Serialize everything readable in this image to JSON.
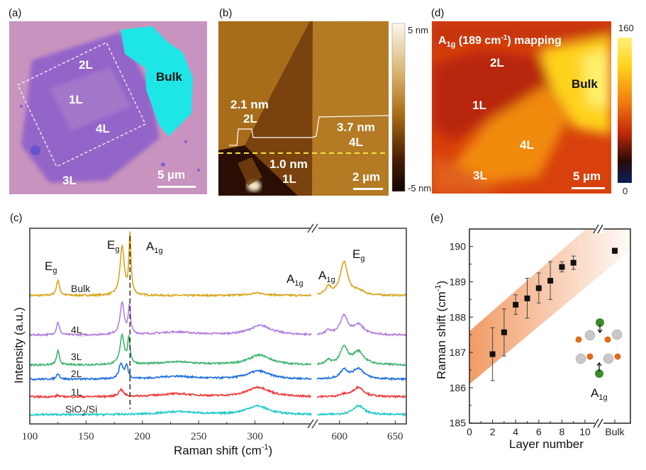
{
  "panels": {
    "a": {
      "label": "(a)",
      "regions": {
        "r2L": "2L",
        "r1L": "1L",
        "r4L": "4L",
        "r3L": "3L"
      },
      "bulk": "Bulk",
      "scale_bar": "5 µm",
      "colors": {
        "substrate": "#c792bd",
        "flake": "#8e62c6",
        "bulk": "#1fe6e6"
      }
    },
    "b": {
      "label": "(b)",
      "step_2L": "2.1 nm",
      "layer_2L": "2L",
      "step_4L": "3.7 nm",
      "layer_4L": "4L",
      "step_1L": "1.0 nm",
      "layer_1L": "1L",
      "scale_bar": "2 µm",
      "colorbar": {
        "max": "5 nm",
        "min": "-5 nm"
      }
    },
    "d": {
      "label": "(d)",
      "title": {
        "a": "A",
        "sub": "1g",
        "mid": " (189 cm",
        "sup": "-1",
        "end": ") mapping"
      },
      "regions": {
        "r2L": "2L",
        "r1L": "1L",
        "r4L": "4L",
        "r3L": "3L"
      },
      "bulk": "Bulk",
      "scale_bar": "5 µm",
      "colorbar": {
        "max": "160",
        "min": "0"
      }
    }
  },
  "chart_data": [
    {
      "panel": "(c)",
      "type": "line",
      "xlabel": {
        "main": "Raman shift (cm",
        "sup": "-1",
        "end": ")"
      },
      "ylabel": "Intensity (a.u.)",
      "x_segments": [
        [
          100,
          350
        ],
        [
          580,
          660
        ]
      ],
      "x_ticks": [
        "100",
        "150",
        "200",
        "250",
        "300",
        "600",
        "650"
      ],
      "dashed_line_x": 189,
      "series": [
        {
          "name": "Bulk",
          "color": "#d8a419",
          "baseline": 65.6,
          "peaks": [
            [
              125,
              7.8,
              1.6
            ],
            [
              182,
              25,
              2.2
            ],
            [
              189,
              30.5,
              1.1
            ],
            [
              302,
              1.2,
              10
            ],
            [
              590,
              4.3,
              3
            ],
            [
              604,
              17,
              4
            ],
            [
              617,
              2,
              6
            ]
          ]
        },
        {
          "name": "4L",
          "color": "#b27ee0",
          "baseline": 45.4,
          "peaks": [
            [
              125,
              6.6,
              1.5
            ],
            [
              182,
              16,
              2.2
            ],
            [
              188.5,
              14,
              1.2
            ],
            [
              230,
              1.5,
              20
            ],
            [
              305,
              4.8,
              12
            ],
            [
              590,
              2,
              3
            ],
            [
              604,
              9.4,
              4
            ],
            [
              617,
              5,
              6
            ]
          ]
        },
        {
          "name": "3L",
          "color": "#3db36e",
          "baseline": 30.1,
          "peaks": [
            [
              125,
              7,
              1.5
            ],
            [
              182,
              15,
              2.2
            ],
            [
              188,
              12.7,
              1.3
            ],
            [
              230,
              1.5,
              20
            ],
            [
              304,
              5,
              12
            ],
            [
              590,
              2,
              3
            ],
            [
              604,
              8.7,
              4
            ],
            [
              617,
              6.6,
              6
            ]
          ]
        },
        {
          "name": "2L",
          "color": "#1f6fe2",
          "baseline": 22.8,
          "peaks": [
            [
              125,
              3,
              1.5
            ],
            [
              181,
              7.5,
              2.2
            ],
            [
              186,
              6.3,
              1.6
            ],
            [
              230,
              1.5,
              20
            ],
            [
              303,
              4.2,
              12
            ],
            [
              604,
              4.7,
              4
            ],
            [
              617,
              5.4,
              6
            ]
          ]
        },
        {
          "name": "1L",
          "color": "#ee3c3c",
          "baseline": 13.8,
          "peaks": [
            [
              125,
              0.8,
              1.5
            ],
            [
              181,
              3.6,
              2.5
            ],
            [
              230,
              1.5,
              20
            ],
            [
              303,
              4.9,
              12
            ],
            [
              604,
              1,
              4
            ],
            [
              617,
              4.9,
              6
            ]
          ]
        },
        {
          "name": "SiO2/Si",
          "label": {
            "main": "SiO",
            "sub": "2",
            "end": "/Si"
          },
          "color": "#1ec9c9",
          "baseline": 4.7,
          "peaks": [
            [
              232,
              1.5,
              20
            ],
            [
              302,
              4.4,
              12
            ],
            [
              617,
              4.7,
              6
            ]
          ]
        }
      ],
      "annotations": [
        {
          "main": "E",
          "sub": "g",
          "x": 125
        },
        {
          "main": "E",
          "sub": "g",
          "x": 182
        },
        {
          "main": "A",
          "sub": "1g",
          "x": 189
        },
        {
          "main": "A",
          "sub": "1g",
          "x": 335
        },
        {
          "main": "A",
          "sub": "1g",
          "x": 590
        },
        {
          "main": "E",
          "sub": "g",
          "x": 604
        }
      ]
    },
    {
      "panel": "(e)",
      "type": "scatter",
      "xlabel": "Layer number",
      "ylabel": {
        "main": "Raman shift (cm",
        "sup": "-1",
        "end": ")"
      },
      "xlim": [
        0,
        11.5
      ],
      "ylim": [
        185,
        190.5
      ],
      "x_ticks": [
        "0",
        "2",
        "4",
        "6",
        "8",
        "10",
        "Bulk"
      ],
      "y_ticks": [
        "185",
        "186",
        "187",
        "188",
        "189",
        "190"
      ],
      "points": [
        {
          "x": "2",
          "y": 186.95,
          "err_low": 186.2,
          "err_high": 187.7
        },
        {
          "x": "3",
          "y": 187.57,
          "err_low": 186.9,
          "err_high": 188.23
        },
        {
          "x": "4",
          "y": 188.35,
          "err_low": 188.08,
          "err_high": 188.63
        },
        {
          "x": "5",
          "y": 188.53,
          "err_low": 187.97,
          "err_high": 189.1
        },
        {
          "x": "6",
          "y": 188.82,
          "err_low": 188.4,
          "err_high": 189.25
        },
        {
          "x": "7",
          "y": 189.03,
          "err_low": 188.5,
          "err_high": 189.57
        },
        {
          "x": "8",
          "y": 189.42,
          "err_low": 189.28,
          "err_high": 189.57
        },
        {
          "x": "9",
          "y": 189.54,
          "err_low": 189.35,
          "err_high": 189.73
        },
        {
          "x": "Bulk",
          "y": 189.88,
          "err_low": 189.8,
          "err_high": 189.95
        }
      ],
      "band_color": "#ee8a4a",
      "inset_label": {
        "main": "A",
        "sub": "1g"
      }
    }
  ]
}
